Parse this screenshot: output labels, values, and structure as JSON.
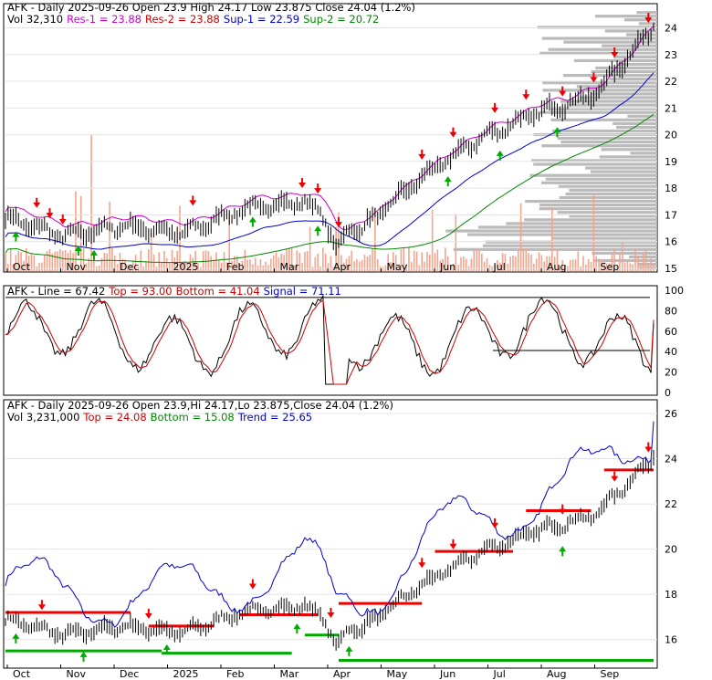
{
  "chart_data": [
    {
      "type": "line",
      "panel": "price",
      "header": {
        "title": "AFK - Daily 2025-09-26 Open 23.9   High 24.17   Low 23.875   Close 24.04 (1.2%)",
        "vol": "Vol 32,310",
        "res1": "Res-1 = 23.88",
        "res2": "Res-2 = 23.88",
        "sup1": "Sup-1 = 22.59",
        "sup2": "Sup-2 = 20.72"
      },
      "x_labels": [
        "Oct",
        "Nov",
        "Dec",
        "2025",
        "Feb",
        "Mar",
        "Apr",
        "May",
        "Jun",
        "Jul",
        "Aug",
        "Sep"
      ],
      "y_ticks": [
        15,
        16,
        17,
        18,
        19,
        20,
        21,
        22,
        23,
        24
      ],
      "ylim": [
        15,
        24.7
      ],
      "months": [
        0,
        1,
        2,
        3,
        4,
        5,
        6,
        7,
        8,
        9,
        10,
        11
      ],
      "close": [
        16.9,
        16.2,
        16.6,
        16.3,
        17.2,
        17.5,
        16.4,
        18.3,
        19.8,
        20.8,
        21.5,
        24.04
      ],
      "res1": 23.88,
      "res2": 23.88,
      "sup1": 22.59,
      "sup2": 20.72,
      "colors": {
        "price": "#000000",
        "res1": "#cc00cc",
        "res2": "#cc0000",
        "sup1": "#0000cc",
        "sup2": "#008800",
        "volume": "#f4a48c",
        "profile": "#bbbbbb",
        "up_arrow": "#00aa00",
        "down_arrow": "#ee0000"
      }
    },
    {
      "type": "line",
      "panel": "stochastic",
      "header": {
        "title": "AFK - Line = 67.42",
        "top": "Top = 93.00",
        "bottom": "Bottom = 41.04",
        "signal": "Signal = 71.11"
      },
      "y_ticks": [
        0,
        20,
        40,
        60,
        80,
        100
      ],
      "ylim": [
        0,
        100
      ],
      "line": 67.42,
      "top": 93.0,
      "bottom": 41.04,
      "signal": 71.11,
      "colors": {
        "line": "#000000",
        "signal": "#cc0000"
      }
    },
    {
      "type": "line",
      "panel": "trend",
      "header": {
        "title": "AFK - Daily 2025-09-26 Open 23.9,Hi 24.17,Lo 23.875,Close 24.04 (1.2%)",
        "vol": "Vol 3,231,000",
        "top": "Top = 24.08",
        "bottom": "Bottom = 15.08",
        "trend": "Trend = 25.65"
      },
      "x_labels": [
        "Oct",
        "Nov",
        "Dec",
        "2025",
        "Feb",
        "Mar",
        "Apr",
        "May",
        "Jun",
        "Jul",
        "Aug",
        "Sep"
      ],
      "y_ticks": [
        16,
        18,
        20,
        22,
        24,
        26
      ],
      "ylim": [
        14.9,
        26.2
      ],
      "top": 24.08,
      "bottom": 15.08,
      "trend": 25.65,
      "colors": {
        "price": "#000000",
        "top": "#ee0000",
        "bottom": "#00aa00",
        "trend": "#0000cc"
      }
    }
  ]
}
